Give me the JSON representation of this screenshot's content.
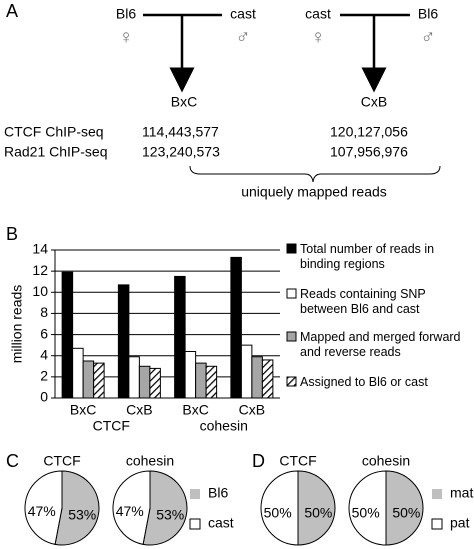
{
  "panels": [
    "A",
    "B",
    "C",
    "D"
  ],
  "crosses": [
    {
      "mother": "Bl6",
      "father": "cast",
      "offspring": "BxC",
      "female_symbol": "♀",
      "male_symbol": "♂"
    },
    {
      "mother": "cast",
      "father": "Bl6",
      "offspring": "CxB",
      "female_symbol": "♀",
      "male_symbol": "♂"
    }
  ],
  "read_table": [
    {
      "label": "CTCF ChIP-seq",
      "values": [
        "114,443,577",
        "120,127,056"
      ]
    },
    {
      "label": "Rad21 ChIP-seq",
      "values": [
        "123,240,573",
        "107,956,976"
      ]
    }
  ],
  "brace_label": "uniquely mapped reads",
  "chart_data": [
    {
      "type": "bar",
      "y_label": "million reads",
      "categories": [
        "BxC",
        "CxB",
        "BxC",
        "CxB"
      ],
      "group_labels": [
        "CTCF",
        "cohesin"
      ],
      "series": [
        {
          "name": "Total number of reads in binding regions",
          "color": "#000000",
          "values": [
            11.9,
            10.7,
            11.5,
            13.3
          ]
        },
        {
          "name": "Reads containing SNP between Bl6 and cast",
          "color": "#ffffff",
          "values": [
            4.7,
            3.9,
            4.4,
            5.0
          ]
        },
        {
          "name": "Mapped and merged forward and reverse reads",
          "color": "#a6a6a6",
          "values": [
            3.5,
            3.0,
            3.3,
            3.9
          ]
        },
        {
          "name": "Assigned to Bl6 or cast",
          "color": "#ffffff",
          "pattern": "hatch",
          "values": [
            3.3,
            2.8,
            3.0,
            3.6
          ]
        }
      ],
      "ylim": [
        0,
        14
      ],
      "yticks": [
        0,
        2,
        4,
        6,
        8,
        10,
        12,
        14
      ],
      "grid": true
    },
    {
      "type": "pie",
      "title": "CTCF",
      "categories": [
        "Bl6",
        "cast"
      ],
      "values": [
        53,
        47
      ],
      "value_labels": [
        "53%",
        "47%"
      ],
      "colors": [
        "#bfbfbf",
        "#ffffff"
      ]
    },
    {
      "type": "pie",
      "title": "cohesin",
      "categories": [
        "Bl6",
        "cast"
      ],
      "values": [
        53,
        47
      ],
      "value_labels": [
        "53%",
        "47%"
      ],
      "colors": [
        "#bfbfbf",
        "#ffffff"
      ],
      "legend": true
    },
    {
      "type": "pie",
      "title": "CTCF",
      "categories": [
        "mat",
        "pat"
      ],
      "values": [
        50,
        50
      ],
      "value_labels": [
        "50%",
        "50%"
      ],
      "colors": [
        "#bfbfbf",
        "#ffffff"
      ]
    },
    {
      "type": "pie",
      "title": "cohesin",
      "categories": [
        "mat",
        "pat"
      ],
      "values": [
        50,
        50
      ],
      "value_labels": [
        "50%",
        "50%"
      ],
      "colors": [
        "#bfbfbf",
        "#ffffff"
      ],
      "legend": true
    }
  ]
}
